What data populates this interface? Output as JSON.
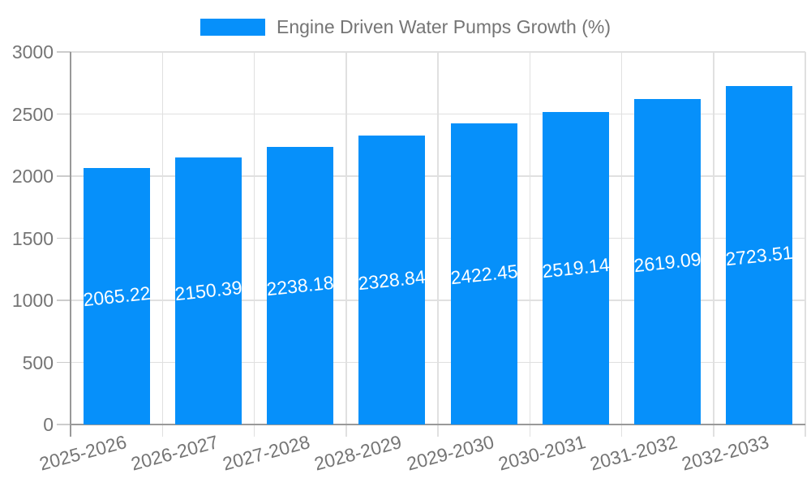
{
  "colors": {
    "bar": "#0690fa",
    "grid": "#e0e0e0",
    "axis": "#999999",
    "tick_text": "#757575",
    "value_text": "#ffffff",
    "background": "#ffffff"
  },
  "chart_data": {
    "type": "bar",
    "title": "",
    "legend": "Engine Driven Water Pumps Growth (%)",
    "legend_position": "top-center",
    "categories": [
      "2025-2026",
      "2026-2027",
      "2027-2028",
      "2028-2029",
      "2029-2030",
      "2030-2031",
      "2031-2032",
      "2032-2033"
    ],
    "values": [
      2065.22,
      2150.39,
      2238.18,
      2328.84,
      2422.45,
      2519.14,
      2619.09,
      2723.51
    ],
    "value_labels": [
      "2065.22",
      "2150.39",
      "2238.18",
      "2328.84",
      "2422.45",
      "2519.14",
      "2619.09",
      "2723.51"
    ],
    "xlabel": "",
    "ylabel": "",
    "ylim": [
      0,
      3000
    ],
    "yticks": [
      0,
      500,
      1000,
      1500,
      2000,
      2500,
      3000
    ],
    "grid": true,
    "value_label_position": "inside-middle",
    "xtick_rotation_deg": -15,
    "value_label_rotation_deg": -6
  }
}
